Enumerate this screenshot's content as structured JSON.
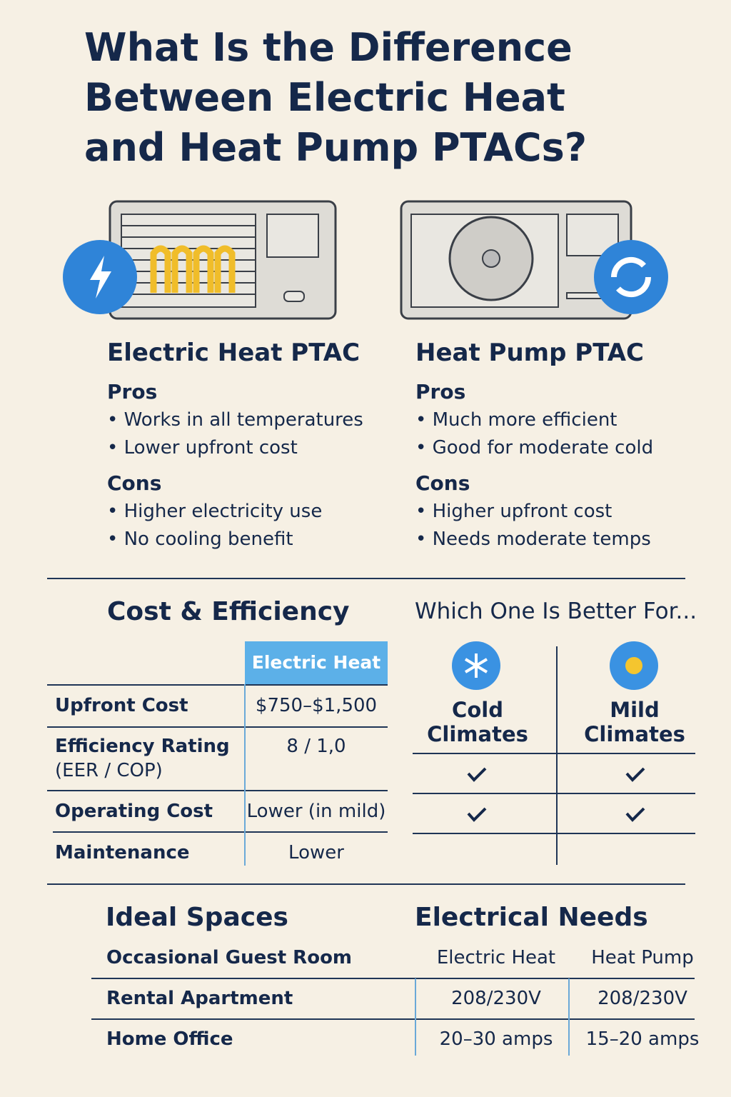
{
  "header": {
    "title": "What Is the Difference Between Electric Heat and Heat Pump PTACs?"
  },
  "units": [
    {
      "name": "Electric Heat PTAC",
      "pros_label": "Pros",
      "pros": [
        "Works in all temperatures",
        "Lower upfront cost"
      ],
      "cons_label": "Cons",
      "cons": [
        "Higher electricity use",
        "No cooling benefit"
      ]
    },
    {
      "name": "Heat Pump PTAC",
      "pros_label": "Pros",
      "pros": [
        "Much more efficient",
        "Good for moderate cold"
      ],
      "cons_label": "Cons",
      "cons": [
        "Higher upfront cost",
        "Needs moderate temps"
      ]
    }
  ],
  "cost": {
    "title": "Cost & Efficiency",
    "column": "Electric Heat",
    "rows": [
      {
        "label": "Upfront Cost",
        "value": "$750–$1,500"
      },
      {
        "label": "Efficiency Rating",
        "sublabel": "(EER / COP)",
        "value": "8 / 1,0"
      },
      {
        "label": "Operating Cost",
        "value": "Lower (in mild)"
      },
      {
        "label": "Maintenance",
        "value": "Lower"
      }
    ]
  },
  "better": {
    "title": "Which One Is Better For...",
    "columns": [
      "Cold Climates",
      "Mild Climates"
    ]
  },
  "ideal": {
    "title": "Ideal Spaces",
    "spaces": [
      "Occasional Guest Room",
      "Rental Apartment",
      "Home Office"
    ]
  },
  "electrical": {
    "title": "Electrical Needs",
    "columns": [
      "Electric Heat",
      "Heat Pump"
    ],
    "rows": [
      [
        "208/230V",
        "208/230V"
      ],
      [
        "20–30 amps",
        "15–20 amps"
      ]
    ]
  }
}
